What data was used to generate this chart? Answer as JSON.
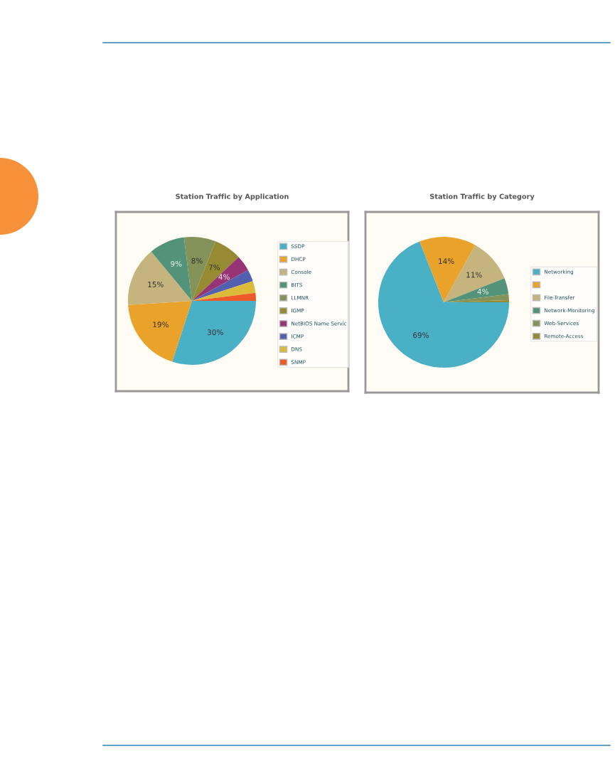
{
  "chart_data": [
    {
      "type": "pie",
      "title": "Station Traffic by Application",
      "categories": [
        "SSDP",
        "DHCP",
        "Console",
        "BITS",
        "LLMNR",
        "IGMP",
        "NetBIOS Name Servic",
        "ICMP",
        "DNS",
        "SNMP"
      ],
      "values": [
        30,
        19,
        15,
        9,
        8,
        7,
        4,
        3,
        3,
        2
      ],
      "colors": [
        "#4ab0c6",
        "#e9a22a",
        "#c6b47e",
        "#53937a",
        "#84935a",
        "#968b33",
        "#963475",
        "#5360b0",
        "#dcbb3a",
        "#ee5a2a"
      ],
      "value_labels": [
        "30%",
        "19%",
        "15%",
        "9%",
        "8%",
        "7%",
        "4%",
        null,
        null,
        null
      ],
      "legend": "right"
    },
    {
      "type": "pie",
      "title": "Station Traffic by Category",
      "categories": [
        "Networking",
        null,
        "File-Transfer",
        "Network-Monitoring",
        "Web-Services",
        "Remote-Access"
      ],
      "values": [
        69,
        14,
        11,
        4,
        1.5,
        0.5
      ],
      "colors": [
        "#4ab0c6",
        "#e9a22a",
        "#c6b47e",
        "#53937a",
        "#84935a",
        "#968b33"
      ],
      "value_labels": [
        "69%",
        "14%",
        "11%",
        "4%",
        null,
        null
      ],
      "legend": "right"
    }
  ]
}
